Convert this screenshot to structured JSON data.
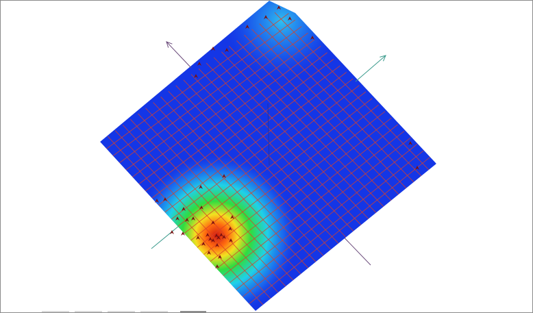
{
  "colors": {
    "surface_base": "#1436e6",
    "grid_line": "#d8402a",
    "axis_teal": "#3a9a8c",
    "axis_purple": "#6a4a7a",
    "marker": "#7a1010",
    "hotspot": [
      "#d81e10",
      "#ff7a10",
      "#ffe020",
      "#30e040",
      "#20d8e8",
      "#1c6cf0"
    ]
  }
}
